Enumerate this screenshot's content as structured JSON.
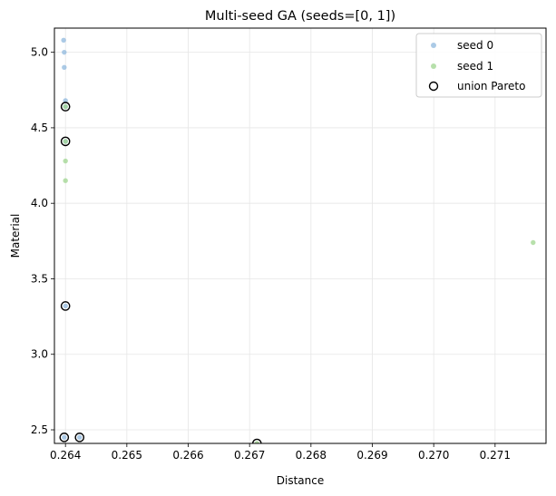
{
  "chart_data": {
    "type": "scatter",
    "title": "Multi-seed GA (seeds=[0, 1])",
    "xlabel": "Distance",
    "ylabel": "Material",
    "xlim": [
      0.26382,
      0.27183
    ],
    "ylim": [
      2.41,
      5.16
    ],
    "xticks": [
      0.264,
      0.265,
      0.266,
      0.267,
      0.268,
      0.269,
      0.27,
      0.271
    ],
    "xtick_labels": [
      "0.264",
      "0.265",
      "0.266",
      "0.267",
      "0.268",
      "0.269",
      "0.270",
      "0.271"
    ],
    "yticks": [
      2.5,
      3.0,
      3.5,
      4.0,
      4.5,
      5.0
    ],
    "ytick_labels": [
      "2.5",
      "3.0",
      "3.5",
      "4.0",
      "4.5",
      "5.0"
    ],
    "grid": true,
    "legend_position": "top-right",
    "series": [
      {
        "name": "seed 0",
        "marker": "small-circle",
        "color": "#8fb8de",
        "points": [
          [
            0.26397,
            5.08
          ],
          [
            0.26398,
            5.0
          ],
          [
            0.26398,
            4.9
          ],
          [
            0.264,
            4.68
          ],
          [
            0.264,
            4.64
          ],
          [
            0.264,
            4.41
          ],
          [
            0.264,
            3.32
          ],
          [
            0.26398,
            2.45
          ],
          [
            0.26423,
            2.45
          ]
        ]
      },
      {
        "name": "seed 1",
        "marker": "small-circle",
        "color": "#9fd68f",
        "points": [
          [
            0.264,
            4.64
          ],
          [
            0.264,
            4.41
          ],
          [
            0.264,
            4.28
          ],
          [
            0.264,
            4.15
          ],
          [
            0.27162,
            3.74
          ],
          [
            0.26712,
            2.41
          ]
        ]
      },
      {
        "name": "union Pareto",
        "marker": "hollow-circle",
        "color": "#000000",
        "points": [
          [
            0.264,
            4.64
          ],
          [
            0.264,
            4.41
          ],
          [
            0.264,
            3.32
          ],
          [
            0.26398,
            2.45
          ],
          [
            0.26423,
            2.45
          ],
          [
            0.26712,
            2.41
          ]
        ]
      }
    ]
  }
}
